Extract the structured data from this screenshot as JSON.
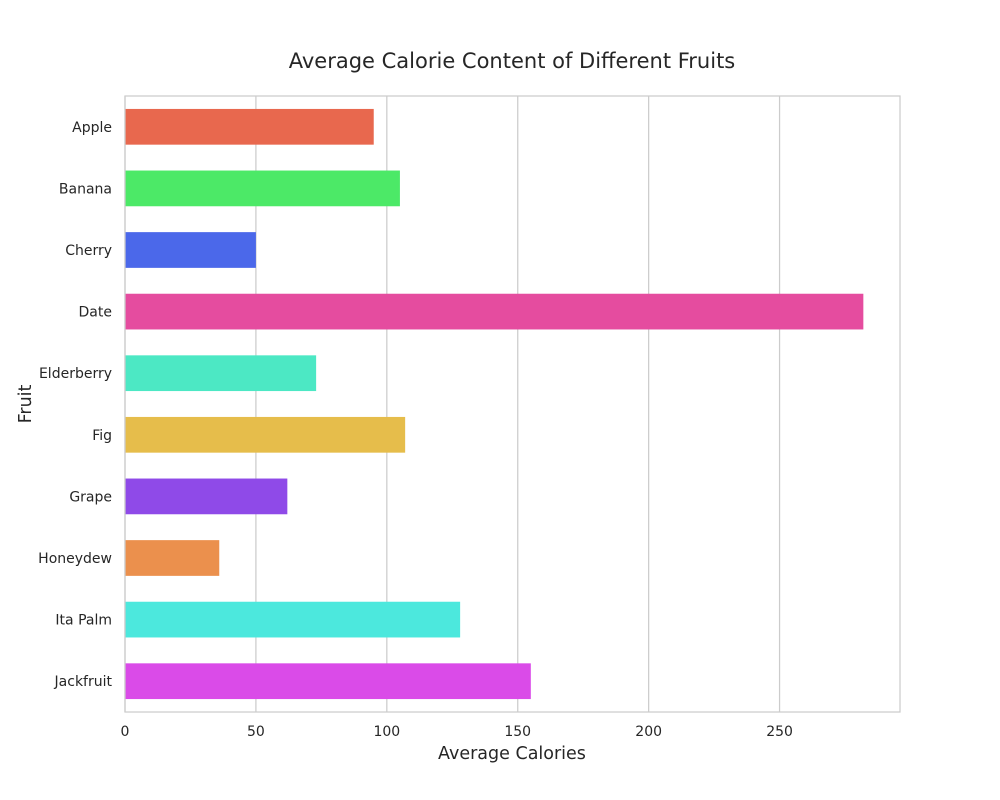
{
  "chart_data": {
    "type": "bar",
    "orientation": "horizontal",
    "title": "Average Calorie Content of Different Fruits",
    "xlabel": "Average Calories",
    "ylabel": "Fruit",
    "categories": [
      "Apple",
      "Banana",
      "Cherry",
      "Date",
      "Elderberry",
      "Fig",
      "Grape",
      "Honeydew",
      "Ita Palm",
      "Jackfruit"
    ],
    "values": [
      95,
      105,
      50,
      282,
      73,
      107,
      62,
      36,
      128,
      155
    ],
    "colors": [
      "#e8684e",
      "#4ce967",
      "#4b68ea",
      "#e54c9f",
      "#4ce8c4",
      "#e6bd4b",
      "#8f4ae8",
      "#eb904d",
      "#4ce8dd",
      "#da4be8"
    ],
    "xlim": [
      0,
      296
    ],
    "xticks": [
      0,
      50,
      100,
      150,
      200,
      250
    ],
    "grid": true
  }
}
